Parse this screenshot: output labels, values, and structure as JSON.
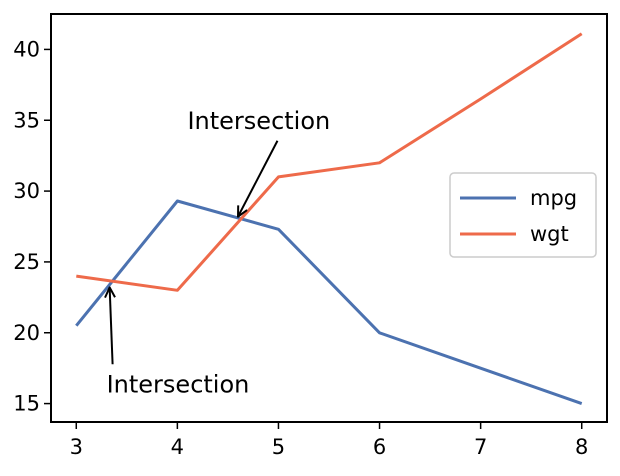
{
  "chart_data": {
    "type": "line",
    "title": "",
    "xlabel": "",
    "ylabel": "",
    "x": [
      3,
      4,
      5,
      6,
      7,
      8
    ],
    "xlim": [
      2.75,
      8.25
    ],
    "ylim": [
      13.7,
      42.5
    ],
    "xticks": [
      "3",
      "4",
      "5",
      "6",
      "7",
      "8"
    ],
    "yticks": [
      "15",
      "20",
      "25",
      "30",
      "35",
      "40"
    ],
    "grid": false,
    "legend_position": "right",
    "series": [
      {
        "name": "mpg",
        "values": [
          20.5,
          29.3,
          27.3,
          20.0,
          17.5,
          15.0
        ],
        "color": "#4c72b0"
      },
      {
        "name": "wgt",
        "values": [
          24.0,
          23.0,
          31.0,
          32.0,
          36.5,
          41.1
        ],
        "color": "#ee6a4a"
      }
    ],
    "annotations": [
      {
        "text": "Intersection",
        "point": [
          4.6,
          28.2
        ],
        "text_anchor": [
          4.1,
          34.4
        ]
      },
      {
        "text": "Intersection",
        "point": [
          3.33,
          23.2
        ],
        "text_anchor": [
          3.3,
          15.8
        ]
      }
    ]
  }
}
